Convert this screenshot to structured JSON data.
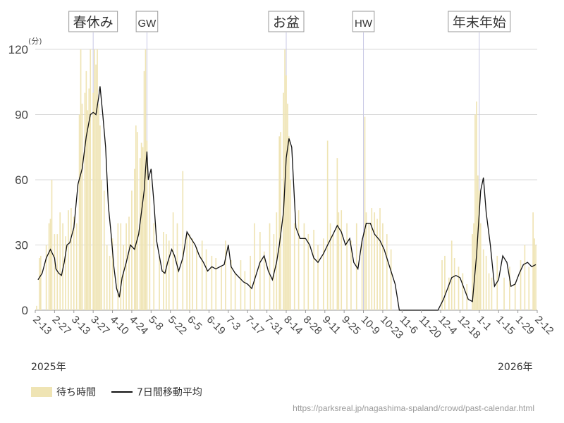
{
  "legend": {
    "bars": "待ち時間",
    "line": "7日間移動平均"
  },
  "years": {
    "start": "2025年",
    "end": "2026年"
  },
  "source": "https://parksreal.jp/nagashima-spaland/crowd/past-calendar.html",
  "colors": {
    "bar": "#efe4b4",
    "line": "#111111",
    "grid": "#d9d9d9",
    "marker": "#c8c8e4"
  },
  "chart_data": {
    "type": "bar",
    "unit": "(分)",
    "ylim": [
      0,
      120
    ],
    "yticks": [
      0,
      30,
      60,
      90,
      120
    ],
    "x_start": "2025-02-13",
    "x_end": "2026-02-12",
    "xticks": [
      "2-13",
      "2-27",
      "3-13",
      "3-27",
      "4-10",
      "4-24",
      "5-8",
      "5-22",
      "6-5",
      "6-19",
      "7-3",
      "7-17",
      "7-31",
      "8-14",
      "8-28",
      "9-11",
      "9-25",
      "10-9",
      "10-23",
      "11-6",
      "11-20",
      "12-4",
      "12-18",
      "1-1",
      "1-15",
      "1-29",
      "2-12"
    ],
    "events": [
      {
        "label": "春休み",
        "date": "3-27"
      },
      {
        "label": "GW",
        "date": "5-5"
      },
      {
        "label": "お盆",
        "date": "8-14"
      },
      {
        "label": "HW",
        "date": "10-9"
      },
      {
        "label": "年末年始",
        "date": "1-1"
      }
    ],
    "series": [
      {
        "name": "待ち時間",
        "type": "bar",
        "points": [
          [
            "2-14",
            2
          ],
          [
            "2-16",
            24
          ],
          [
            "2-17",
            25
          ],
          [
            "2-21",
            30
          ],
          [
            "2-23",
            40
          ],
          [
            "2-24",
            42
          ],
          [
            "2-25",
            60
          ],
          [
            "2-27",
            35
          ],
          [
            "3-1",
            35
          ],
          [
            "3-3",
            45
          ],
          [
            "3-5",
            40
          ],
          [
            "3-7",
            34
          ],
          [
            "3-9",
            46
          ],
          [
            "3-11",
            47
          ],
          [
            "3-13",
            43
          ],
          [
            "3-15",
            40
          ],
          [
            "3-17",
            90
          ],
          [
            "3-18",
            120
          ],
          [
            "3-19",
            95
          ],
          [
            "3-21",
            100
          ],
          [
            "3-22",
            110
          ],
          [
            "3-23",
            92
          ],
          [
            "3-24",
            102
          ],
          [
            "3-25",
            120
          ],
          [
            "3-27",
            100
          ],
          [
            "3-28",
            120
          ],
          [
            "3-29",
            113
          ],
          [
            "3-30",
            120
          ],
          [
            "3-31",
            95
          ],
          [
            "4-1",
            85
          ],
          [
            "4-2",
            60
          ],
          [
            "4-4",
            55
          ],
          [
            "4-6",
            30
          ],
          [
            "4-8",
            25
          ],
          [
            "4-10",
            33
          ],
          [
            "4-14",
            40
          ],
          [
            "4-16",
            40
          ],
          [
            "4-18",
            30
          ],
          [
            "4-20",
            40
          ],
          [
            "4-22",
            43
          ],
          [
            "4-24",
            55
          ],
          [
            "4-26",
            65
          ],
          [
            "4-27",
            85
          ],
          [
            "4-28",
            82
          ],
          [
            "4-30",
            70
          ],
          [
            "5-1",
            77
          ],
          [
            "5-2",
            75
          ],
          [
            "5-3",
            110
          ],
          [
            "5-4",
            120
          ],
          [
            "5-5",
            78
          ],
          [
            "5-7",
            60
          ],
          [
            "5-10",
            40
          ],
          [
            "5-14",
            25
          ],
          [
            "5-17",
            36
          ],
          [
            "5-19",
            35
          ],
          [
            "5-21",
            32
          ],
          [
            "5-24",
            45
          ],
          [
            "5-27",
            40
          ],
          [
            "5-31",
            64
          ],
          [
            "6-3",
            35
          ],
          [
            "6-5",
            35
          ],
          [
            "6-7",
            33
          ],
          [
            "6-10",
            29
          ],
          [
            "6-14",
            32
          ],
          [
            "6-17",
            28
          ],
          [
            "6-21",
            25
          ],
          [
            "6-24",
            24
          ],
          [
            "6-28",
            20
          ],
          [
            "7-1",
            32
          ],
          [
            "7-5",
            23
          ],
          [
            "7-8",
            17
          ],
          [
            "7-12",
            23
          ],
          [
            "7-15",
            18
          ],
          [
            "7-19",
            25
          ],
          [
            "7-22",
            40
          ],
          [
            "7-26",
            36
          ],
          [
            "7-29",
            27
          ],
          [
            "8-2",
            40
          ],
          [
            "8-5",
            35
          ],
          [
            "8-7",
            45
          ],
          [
            "8-9",
            80
          ],
          [
            "8-10",
            82
          ],
          [
            "8-12",
            100
          ],
          [
            "8-13",
            120
          ],
          [
            "8-14",
            108
          ],
          [
            "8-15",
            95
          ],
          [
            "8-16",
            80
          ],
          [
            "8-17",
            60
          ],
          [
            "8-20",
            40
          ],
          [
            "8-23",
            46
          ],
          [
            "8-27",
            40
          ],
          [
            "8-30",
            35
          ],
          [
            "9-3",
            37
          ],
          [
            "9-6",
            30
          ],
          [
            "9-10",
            33
          ],
          [
            "9-13",
            78
          ],
          [
            "9-15",
            40
          ],
          [
            "9-17",
            35
          ],
          [
            "9-20",
            70
          ],
          [
            "9-21",
            45
          ],
          [
            "9-23",
            46
          ],
          [
            "9-27",
            40
          ],
          [
            "9-30",
            32
          ],
          [
            "10-4",
            40
          ],
          [
            "10-8",
            33
          ],
          [
            "10-10",
            89
          ],
          [
            "10-11",
            45
          ],
          [
            "10-13",
            40
          ],
          [
            "10-15",
            47
          ],
          [
            "10-17",
            45
          ],
          [
            "10-19",
            42
          ],
          [
            "10-21",
            47
          ],
          [
            "10-23",
            40
          ],
          [
            "10-26",
            35
          ],
          [
            "10-29",
            28
          ],
          [
            "12-5",
            23
          ],
          [
            "12-7",
            25
          ],
          [
            "12-10",
            15
          ],
          [
            "12-12",
            32
          ],
          [
            "12-14",
            24
          ],
          [
            "12-17",
            20
          ],
          [
            "12-20",
            17
          ],
          [
            "12-23",
            12
          ],
          [
            "12-27",
            35
          ],
          [
            "12-28",
            40
          ],
          [
            "12-29",
            90
          ],
          [
            "12-30",
            96
          ],
          [
            "12-31",
            62
          ],
          [
            "1-1",
            55
          ],
          [
            "1-2",
            40
          ],
          [
            "1-4",
            28
          ],
          [
            "1-6",
            25
          ],
          [
            "1-8",
            17
          ],
          [
            "1-10",
            15
          ],
          [
            "1-14",
            25
          ],
          [
            "1-19",
            15
          ],
          [
            "1-23",
            20
          ],
          [
            "1-27",
            12
          ],
          [
            "1-31",
            23
          ],
          [
            "2-3",
            30
          ],
          [
            "2-6",
            20
          ],
          [
            "2-9",
            45
          ],
          [
            "2-10",
            33
          ],
          [
            "2-11",
            30
          ]
        ]
      },
      {
        "name": "7日間移動平均",
        "type": "line",
        "points": [
          [
            "2-15",
            14
          ],
          [
            "2-18",
            17
          ],
          [
            "2-21",
            24
          ],
          [
            "2-24",
            28
          ],
          [
            "2-27",
            24
          ],
          [
            "2-28",
            19
          ],
          [
            "3-2",
            17
          ],
          [
            "3-4",
            16
          ],
          [
            "3-6",
            22
          ],
          [
            "3-8",
            30
          ],
          [
            "3-10",
            31
          ],
          [
            "3-13",
            38
          ],
          [
            "3-16",
            58
          ],
          [
            "3-19",
            65
          ],
          [
            "3-22",
            80
          ],
          [
            "3-25",
            90
          ],
          [
            "3-27",
            91
          ],
          [
            "3-29",
            90
          ],
          [
            "3-31",
            98
          ],
          [
            "4-1",
            103
          ],
          [
            "4-3",
            90
          ],
          [
            "4-5",
            75
          ],
          [
            "4-7",
            48
          ],
          [
            "4-9",
            35
          ],
          [
            "4-11",
            20
          ],
          [
            "4-13",
            10
          ],
          [
            "4-15",
            6
          ],
          [
            "4-17",
            15
          ],
          [
            "4-20",
            22
          ],
          [
            "4-23",
            30
          ],
          [
            "4-26",
            28
          ],
          [
            "4-29",
            35
          ],
          [
            "5-1",
            45
          ],
          [
            "5-3",
            55
          ],
          [
            "5-4",
            65
          ],
          [
            "5-5",
            73
          ],
          [
            "5-6",
            60
          ],
          [
            "5-8",
            65
          ],
          [
            "5-10",
            50
          ],
          [
            "5-12",
            32
          ],
          [
            "5-14",
            25
          ],
          [
            "5-16",
            18
          ],
          [
            "5-18",
            17
          ],
          [
            "5-20",
            22
          ],
          [
            "5-23",
            28
          ],
          [
            "5-25",
            25
          ],
          [
            "5-28",
            18
          ],
          [
            "5-31",
            24
          ],
          [
            "6-3",
            36
          ],
          [
            "6-6",
            33
          ],
          [
            "6-9",
            30
          ],
          [
            "6-12",
            25
          ],
          [
            "6-15",
            22
          ],
          [
            "6-18",
            18
          ],
          [
            "6-21",
            20
          ],
          [
            "6-24",
            19
          ],
          [
            "6-27",
            20
          ],
          [
            "6-30",
            21
          ],
          [
            "7-3",
            30
          ],
          [
            "7-5",
            20
          ],
          [
            "7-8",
            17
          ],
          [
            "7-11",
            15
          ],
          [
            "7-14",
            13
          ],
          [
            "7-17",
            12
          ],
          [
            "7-20",
            10
          ],
          [
            "7-23",
            16
          ],
          [
            "7-26",
            22
          ],
          [
            "7-29",
            25
          ],
          [
            "8-1",
            18
          ],
          [
            "8-4",
            14
          ],
          [
            "8-7",
            22
          ],
          [
            "8-9",
            30
          ],
          [
            "8-12",
            45
          ],
          [
            "8-14",
            70
          ],
          [
            "8-16",
            79
          ],
          [
            "8-18",
            75
          ],
          [
            "8-21",
            38
          ],
          [
            "8-24",
            33
          ],
          [
            "8-28",
            33
          ],
          [
            "8-31",
            30
          ],
          [
            "9-3",
            24
          ],
          [
            "9-6",
            22
          ],
          [
            "9-10",
            26
          ],
          [
            "9-13",
            30
          ],
          [
            "9-17",
            35
          ],
          [
            "9-20",
            39
          ],
          [
            "9-23",
            36
          ],
          [
            "9-26",
            30
          ],
          [
            "9-29",
            33
          ],
          [
            "10-2",
            22
          ],
          [
            "10-5",
            19
          ],
          [
            "10-8",
            32
          ],
          [
            "10-11",
            40
          ],
          [
            "10-14",
            40
          ],
          [
            "10-17",
            35
          ],
          [
            "10-21",
            32
          ],
          [
            "10-24",
            28
          ],
          [
            "10-27",
            22
          ],
          [
            "11-1",
            12
          ],
          [
            "11-4",
            0
          ],
          [
            "11-8",
            0
          ],
          [
            "11-14",
            0
          ],
          [
            "11-22",
            0
          ],
          [
            "11-30",
            0
          ],
          [
            "12-2",
            0
          ],
          [
            "12-6",
            5
          ],
          [
            "12-9",
            10
          ],
          [
            "12-12",
            15
          ],
          [
            "12-15",
            16
          ],
          [
            "12-18",
            15
          ],
          [
            "12-21",
            10
          ],
          [
            "12-24",
            5
          ],
          [
            "12-27",
            4
          ],
          [
            "12-30",
            25
          ],
          [
            "1-2",
            55
          ],
          [
            "1-4",
            61
          ],
          [
            "1-6",
            45
          ],
          [
            "1-9",
            30
          ],
          [
            "1-12",
            11
          ],
          [
            "1-15",
            14
          ],
          [
            "1-18",
            25
          ],
          [
            "1-21",
            22
          ],
          [
            "1-24",
            11
          ],
          [
            "1-27",
            12
          ],
          [
            "1-30",
            17
          ],
          [
            "2-2",
            21
          ],
          [
            "2-5",
            22
          ],
          [
            "2-8",
            20
          ],
          [
            "2-11",
            21
          ]
        ]
      }
    ]
  }
}
